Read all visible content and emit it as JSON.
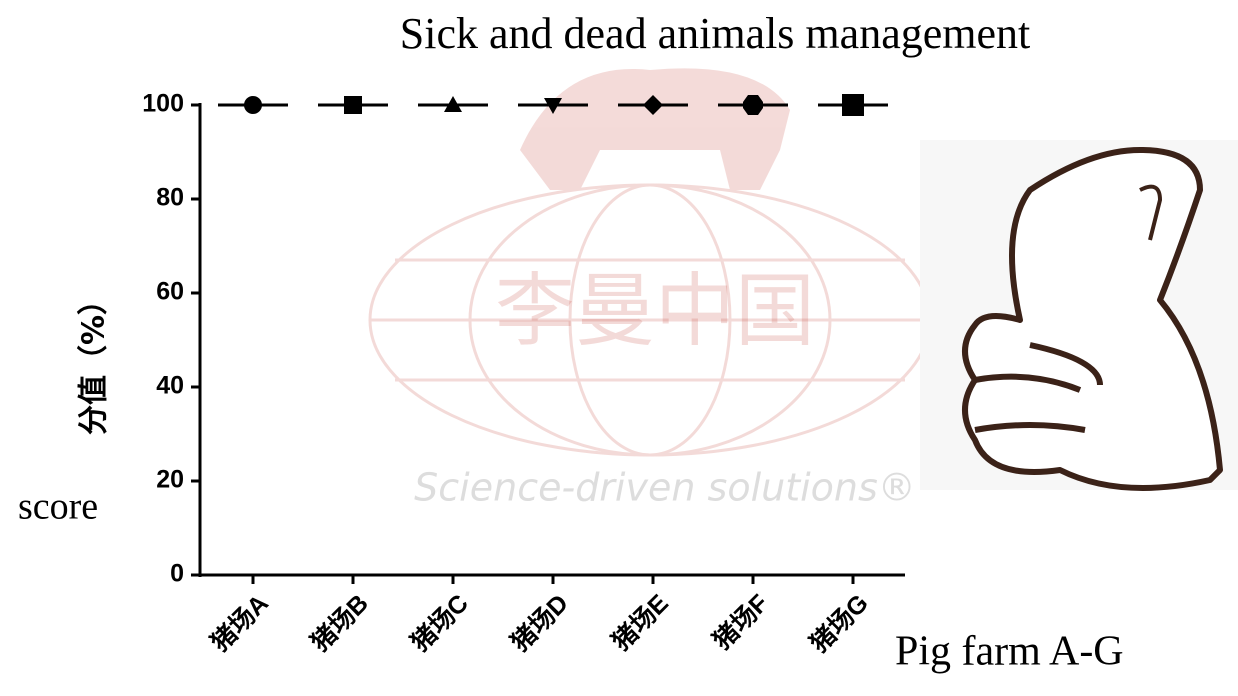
{
  "chart_data": {
    "type": "dot",
    "title": "Sick and dead animals management",
    "y_label": "分值（%）",
    "y_annotation": "score",
    "x_annotation": "Pig farm A-G",
    "categories": [
      "猪场A",
      "猪场B",
      "猪场C",
      "猪场D",
      "猪场E",
      "猪场F",
      "猪场G"
    ],
    "values": [
      100,
      100,
      100,
      100,
      100,
      100,
      100
    ],
    "markers": [
      "circle",
      "square",
      "triangle",
      "triangle-down",
      "diamond",
      "hexagon",
      "square-large"
    ],
    "color": "#000000",
    "ylim": [
      0,
      100
    ],
    "yticks": [
      0,
      20,
      40,
      60,
      80,
      100
    ],
    "grid": false,
    "watermark": {
      "logo_text": "李曼中国",
      "tagline": "Science-driven solutions®"
    }
  }
}
